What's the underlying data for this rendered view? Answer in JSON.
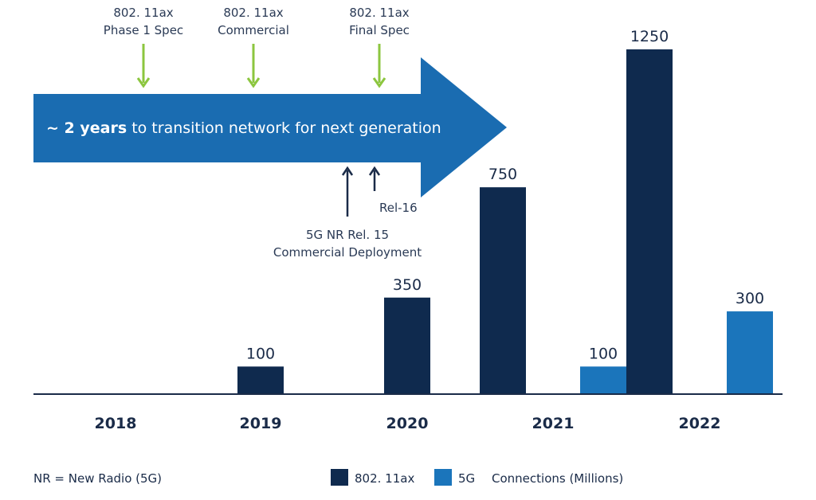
{
  "chart_data": {
    "type": "bar",
    "categories": [
      "2018",
      "2019",
      "2020",
      "2021",
      "2022"
    ],
    "series": [
      {
        "name": "802. 11ax",
        "values": [
          0,
          100,
          350,
          750,
          1250
        ]
      },
      {
        "name": "5G",
        "values": [
          0,
          0,
          0,
          100,
          300
        ]
      }
    ],
    "value_labels": [
      [
        "",
        "100",
        "350",
        "750",
        "1250"
      ],
      [
        "",
        "",
        "",
        "100",
        "300"
      ]
    ],
    "ylim": [
      0,
      1250
    ],
    "grid": false,
    "legend": {
      "placement": "bottom",
      "unit_label": "Connections (Millions)"
    },
    "footnote": "NR = New Radio (5G)",
    "banner": {
      "bold": "~ 2 years",
      "rest": " to transition network for next generation"
    },
    "annotations": {
      "wifi_phase1": [
        "802. 11ax",
        "Phase 1 Spec"
      ],
      "wifi_commercial": [
        "802. 11ax",
        "Commercial"
      ],
      "wifi_final": [
        "802. 11ax",
        "Final Spec"
      ],
      "nr_rel16": [
        "Rel-16"
      ],
      "nr_rel15": [
        "5G NR Rel. 15",
        "Commercial Deployment"
      ]
    },
    "colors": {
      "wifi": "#0f2a4e",
      "fiveg": "#1b75bb",
      "banner": "#1a6cb1",
      "green_arrow": "#8cc63f",
      "dark_arrow": "#1a2b48"
    }
  }
}
